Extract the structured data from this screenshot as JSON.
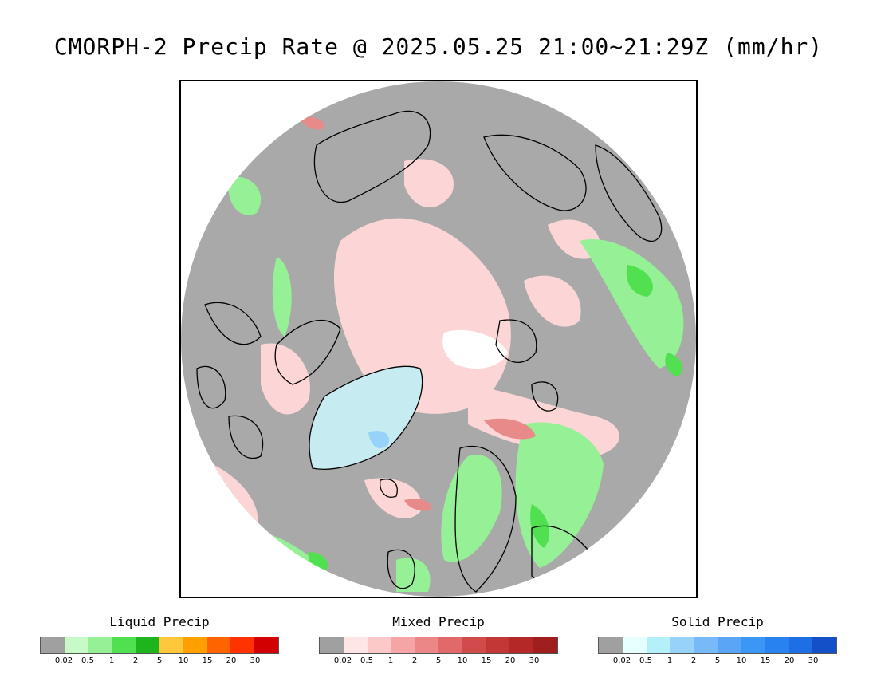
{
  "title": "CMORPH-2 Precip Rate @ 2025.05.25 21:00~21:29Z (mm/hr)",
  "map": {
    "projection": "polar stereographic (north)",
    "background_color": "#a9a9a9",
    "coastline_color": "#000000"
  },
  "legends": [
    {
      "title": "Liquid Precip",
      "colors": [
        "#a0a0a0",
        "#c8fac8",
        "#96f096",
        "#50e050",
        "#1eb41e",
        "#ffc83c",
        "#ffa000",
        "#ff6400",
        "#ff3200",
        "#d20000"
      ],
      "ticks": [
        "0.02",
        "0.5",
        "1",
        "2",
        "5",
        "10",
        "15",
        "20",
        "30"
      ]
    },
    {
      "title": "Mixed Precip",
      "colors": [
        "#a0a0a0",
        "#ffe6e6",
        "#fcc8c8",
        "#f5a5a5",
        "#eb8787",
        "#e16969",
        "#d24b4b",
        "#c33737",
        "#b42828",
        "#a01e1e"
      ],
      "ticks": [
        "0.02",
        "0.5",
        "1",
        "2",
        "5",
        "10",
        "15",
        "20",
        "30"
      ]
    },
    {
      "title": "Solid Precip",
      "colors": [
        "#a0a0a0",
        "#e6ffff",
        "#b4f0fa",
        "#96d2fa",
        "#78b9fa",
        "#5aa5f5",
        "#3c96f5",
        "#2882f0",
        "#1e6ee6",
        "#1450c8"
      ],
      "ticks": [
        "0.02",
        "0.5",
        "1",
        "2",
        "5",
        "10",
        "15",
        "20",
        "30"
      ]
    }
  ]
}
